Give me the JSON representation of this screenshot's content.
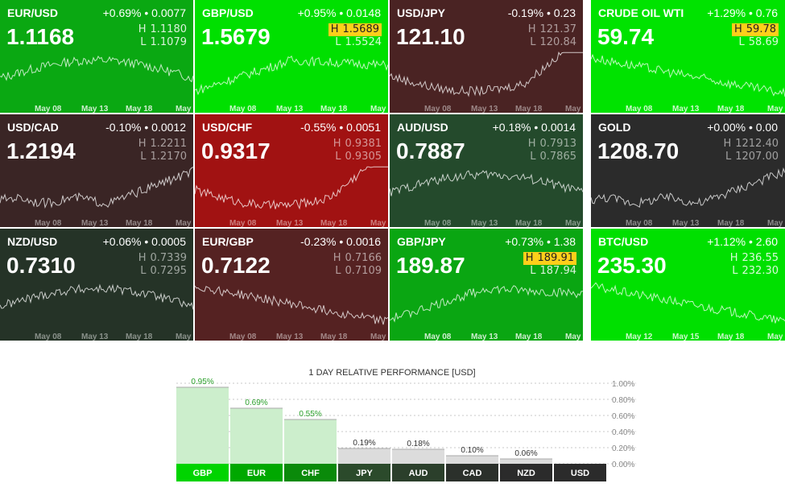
{
  "colors": {
    "bright_green": "#00e300",
    "mid_green": "#009d00",
    "dark_green": "#22442a",
    "dark_red": "#4a2020",
    "red": "#a31414",
    "neutral_dark": "#2b2b2b",
    "highlight_yellow": "#ffcf1a"
  },
  "tiles": [
    {
      "symbol": "EUR/USD",
      "change": "+0.69% • 0.0077",
      "price": "1.1168",
      "high": "1.1180",
      "low": "1.1079",
      "highlight": "",
      "color": "#0aa812",
      "trend": "hump",
      "dates": [
        "May 08",
        "May 13",
        "May 18",
        "May"
      ]
    },
    {
      "symbol": "GBP/USD",
      "change": "+0.95% • 0.0148",
      "price": "1.5679",
      "high": "1.5689",
      "low": "1.5524",
      "highlight": "high",
      "color": "#00e000",
      "trend": "rise_flat",
      "dates": [
        "May 08",
        "May 13",
        "May 18",
        "May"
      ]
    },
    {
      "symbol": "USD/JPY",
      "change": "-0.19% • 0.23",
      "price": "121.10",
      "high": "121.37",
      "low": "120.84",
      "highlight": "",
      "color": "#4a2323",
      "trend": "dip_rise",
      "dates": [
        "May 08",
        "May 13",
        "May 18",
        "May"
      ]
    },
    {
      "symbol": "CRUDE OIL WTI",
      "change": "+1.29% • 0.76",
      "price": "59.74",
      "high": "59.78",
      "low": "58.69",
      "highlight": "high",
      "color": "#00e300",
      "trend": "fall",
      "dates": [
        "May 08",
        "May 13",
        "May 18",
        "May"
      ]
    },
    {
      "symbol": "USD/CAD",
      "change": "-0.10% • 0.0012",
      "price": "1.2194",
      "high": "1.2211",
      "low": "1.2170",
      "highlight": "",
      "color": "#3a2525",
      "trend": "late_rise",
      "dates": [
        "May 08",
        "May 13",
        "May 18",
        "May"
      ]
    },
    {
      "symbol": "USD/CHF",
      "change": "-0.55% • 0.0051",
      "price": "0.9317",
      "high": "0.9381",
      "low": "0.9305",
      "highlight": "",
      "color": "#a11212",
      "trend": "dip_rise",
      "dates": [
        "May 08",
        "May 13",
        "May 18",
        "May"
      ]
    },
    {
      "symbol": "AUD/USD",
      "change": "+0.18% • 0.0014",
      "price": "0.7887",
      "high": "0.7913",
      "low": "0.7865",
      "highlight": "",
      "color": "#244a2c",
      "trend": "hump",
      "dates": [
        "May 08",
        "May 13",
        "May 18",
        "May"
      ]
    },
    {
      "symbol": "GOLD",
      "change": "+0.00% • 0.00",
      "price": "1208.70",
      "high": "1212.40",
      "low": "1207.00",
      "highlight": "",
      "color": "#2b2b2b",
      "trend": "late_rise",
      "dates": [
        "May 08",
        "May 13",
        "May 18",
        "May"
      ]
    },
    {
      "symbol": "NZD/USD",
      "change": "+0.06% • 0.0005",
      "price": "0.7310",
      "high": "0.7339",
      "low": "0.7295",
      "highlight": "",
      "color": "#253327",
      "trend": "hump",
      "dates": [
        "May 08",
        "May 13",
        "May 18",
        "May"
      ]
    },
    {
      "symbol": "EUR/GBP",
      "change": "-0.23% • 0.0016",
      "price": "0.7122",
      "high": "0.7166",
      "low": "0.7109",
      "highlight": "",
      "color": "#552222",
      "trend": "fall",
      "dates": [
        "May 08",
        "May 13",
        "May 18",
        "May"
      ]
    },
    {
      "symbol": "GBP/JPY",
      "change": "+0.73% • 1.38",
      "price": "189.87",
      "high": "189.91",
      "low": "187.94",
      "highlight": "high",
      "color": "#0aa612",
      "trend": "rise_flat",
      "dates": [
        "May 08",
        "May 13",
        "May 18",
        "May"
      ]
    },
    {
      "symbol": "BTC/USD",
      "change": "+1.12% • 2.60",
      "price": "235.30",
      "high": "236.55",
      "low": "232.30",
      "highlight": "",
      "color": "#00e000",
      "trend": "fall",
      "dates": [
        "May 12",
        "May 15",
        "May 18",
        "May"
      ]
    }
  ],
  "chart_data": {
    "type": "bar",
    "title": "1 DAY RELATIVE PERFORMANCE  [USD]",
    "categories": [
      "GBP",
      "EUR",
      "CHF",
      "JPY",
      "AUD",
      "CAD",
      "NZD",
      "USD"
    ],
    "values": [
      0.95,
      0.69,
      0.55,
      0.19,
      0.18,
      0.1,
      0.06,
      0
    ],
    "value_labels": [
      "0.95%",
      "0.69%",
      "0.55%",
      "0.19%",
      "0.18%",
      "0.10%",
      "0.06%",
      ""
    ],
    "y_ticks": [
      "1.00%",
      "0.80%",
      "0.60%",
      "0.40%",
      "0.20%",
      "0.00%"
    ],
    "ylim": [
      0,
      1.0
    ],
    "grid": true,
    "category_colors": [
      "#00d400",
      "#00a800",
      "#0a8a0a",
      "#2b4a2b",
      "#2b3f2b",
      "#2b302b",
      "#2b2b2b",
      "#2b2b2b"
    ],
    "bar_fill_positive": "#cceecc",
    "bar_fill_low": "#dcdcdc"
  }
}
